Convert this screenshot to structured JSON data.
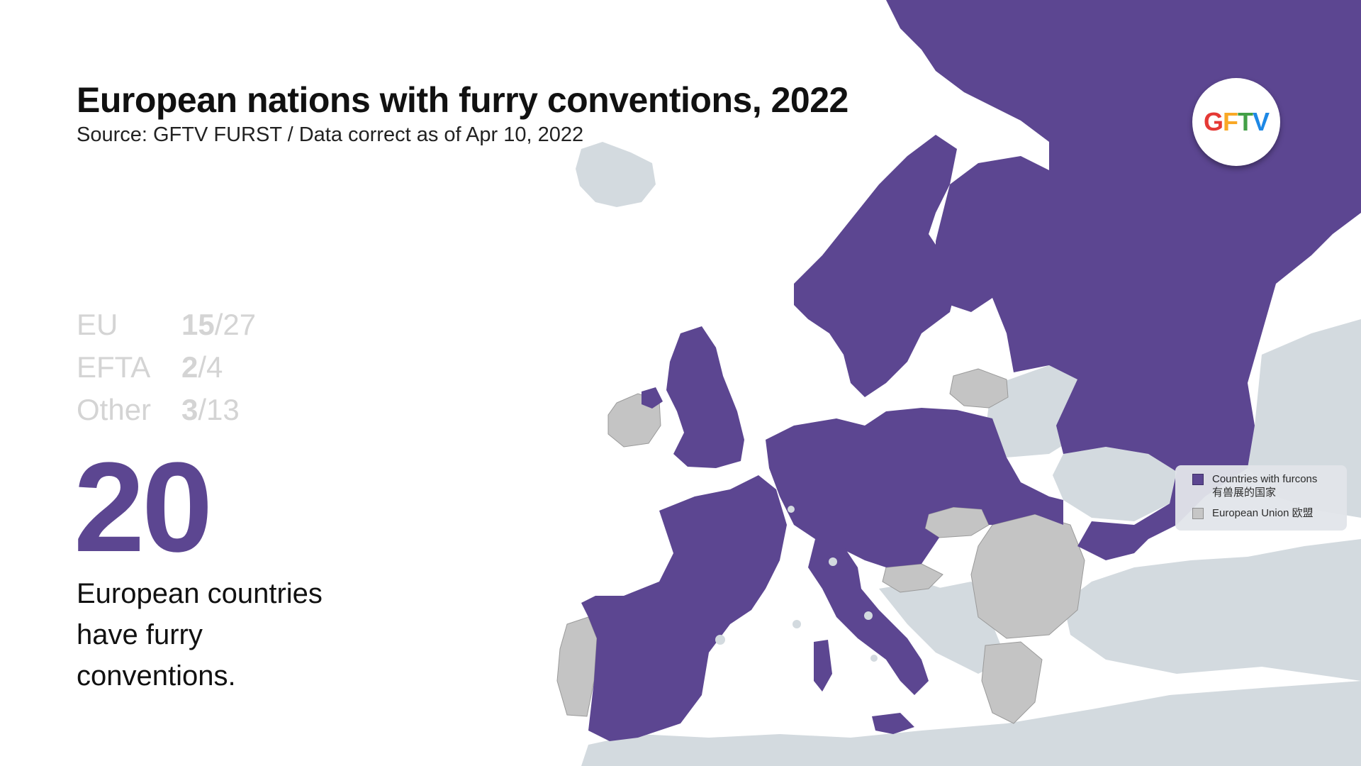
{
  "title": "European nations with furry conventions, 2022",
  "subtitle": "Source: GFTV FURST / Data correct as of Apr 10, 2022",
  "stats": [
    {
      "label": "EU",
      "count": "15",
      "total": "/27"
    },
    {
      "label": "EFTA",
      "count": "2",
      "total": "/4"
    },
    {
      "label": "Other",
      "count": "3",
      "total": "/13"
    }
  ],
  "big_number": "20",
  "caption_lines": [
    "European countries",
    "have furry",
    "conventions."
  ],
  "logo": {
    "letters": [
      "G",
      "F",
      "T",
      "V"
    ],
    "colors": [
      "#e53935",
      "#f9a825",
      "#43a047",
      "#1e88e5"
    ]
  },
  "legend": {
    "furcon_label": "Countries with furcons",
    "furcon_label_zh": "有兽展的国家",
    "eu_label": "European Union 欧盟"
  },
  "colors": {
    "furcon": "#5c4691",
    "eu_without": "#c4c4c4",
    "other_land": "#d3dadf",
    "sea": "#ffffff"
  }
}
